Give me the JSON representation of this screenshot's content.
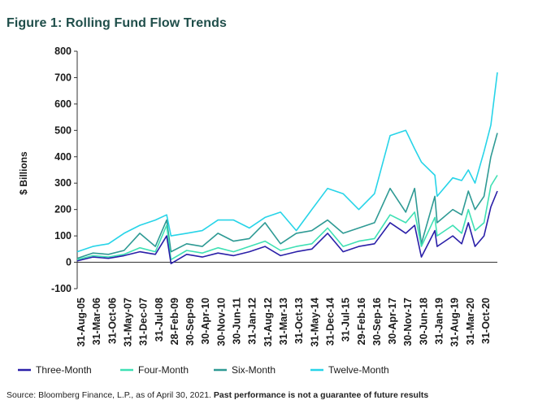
{
  "header": {
    "title": "Figure 1: Rolling Fund Flow Trends"
  },
  "footnote": {
    "source": "Source: Bloomberg Finance, L.P., as of April 30, 2021. ",
    "disclaimer": "Past performance is not a guarantee of future results"
  },
  "colors": {
    "three_month": "#2a1fa8",
    "four_month": "#3ee0b4",
    "six_month": "#2e9a94",
    "twelve_month": "#27d4e8",
    "axis": "#333333",
    "title": "#1f4e4a"
  },
  "chart_data": {
    "type": "line",
    "title": "Figure 1: Rolling Fund Flow Trends",
    "ylabel": "$ Billions",
    "xlabel": "",
    "ylim": [
      -100,
      800
    ],
    "yticks": [
      -100,
      0,
      100,
      200,
      300,
      400,
      500,
      600,
      700,
      800
    ],
    "xlim": [
      "2005-08-31",
      "2021-04-30"
    ],
    "xtick_labels": [
      "31-Aug-05",
      "31-Mar-06",
      "31-Oct-06",
      "31-May-07",
      "31-Dec-07",
      "31-Jul-08",
      "28-Feb-09",
      "30-Sep-09",
      "30-Apr-10",
      "30-Nov-10",
      "30-Jun-11",
      "31-Jan-12",
      "31-Aug-12",
      "31-Mar-13",
      "31-Oct-13",
      "31-May-14",
      "31-Dec-14",
      "31-Jul-15",
      "29-Feb-16",
      "30-Sep-16",
      "30-Apr-17",
      "30-Nov-17",
      "30-Jun-18",
      "31-Jan-19",
      "31-Aug-19",
      "31-Mar-20",
      "31-Oct-20"
    ],
    "grid": false,
    "legend_position": "bottom",
    "series": [
      {
        "name": "Three-Month",
        "x": [
          "2005-08-31",
          "2006-03-31",
          "2006-10-31",
          "2007-05-31",
          "2007-12-31",
          "2008-07-31",
          "2008-12-31",
          "2009-02-28",
          "2009-09-30",
          "2010-04-30",
          "2010-11-30",
          "2011-06-30",
          "2012-01-31",
          "2012-08-31",
          "2013-03-31",
          "2013-10-31",
          "2014-05-31",
          "2014-12-31",
          "2015-07-31",
          "2016-02-29",
          "2016-09-30",
          "2017-04-30",
          "2017-11-30",
          "2018-03-31",
          "2018-06-30",
          "2018-12-31",
          "2019-01-31",
          "2019-08-31",
          "2019-12-31",
          "2020-03-31",
          "2020-06-30",
          "2020-10-31",
          "2021-01-31",
          "2021-04-30"
        ],
        "y": [
          5,
          20,
          15,
          25,
          40,
          30,
          100,
          -5,
          30,
          20,
          35,
          25,
          40,
          60,
          25,
          40,
          50,
          110,
          40,
          60,
          70,
          150,
          110,
          140,
          20,
          120,
          60,
          100,
          70,
          150,
          60,
          100,
          210,
          270
        ]
      },
      {
        "name": "Four-Month",
        "x": [
          "2005-08-31",
          "2006-03-31",
          "2006-10-31",
          "2007-05-31",
          "2007-12-31",
          "2008-07-31",
          "2008-12-31",
          "2009-02-28",
          "2009-09-30",
          "2010-04-30",
          "2010-11-30",
          "2011-06-30",
          "2012-01-31",
          "2012-08-31",
          "2013-03-31",
          "2013-10-31",
          "2014-05-31",
          "2014-12-31",
          "2015-07-31",
          "2016-02-29",
          "2016-09-30",
          "2017-04-30",
          "2017-11-30",
          "2018-03-31",
          "2018-06-30",
          "2018-12-31",
          "2019-01-31",
          "2019-08-31",
          "2019-12-31",
          "2020-03-31",
          "2020-06-30",
          "2020-10-31",
          "2021-01-31",
          "2021-04-30"
        ],
        "y": [
          10,
          25,
          20,
          30,
          55,
          40,
          140,
          10,
          45,
          35,
          55,
          40,
          60,
          80,
          45,
          60,
          70,
          130,
          60,
          80,
          90,
          180,
          150,
          190,
          60,
          170,
          100,
          140,
          110,
          200,
          120,
          150,
          290,
          330
        ]
      },
      {
        "name": "Six-Month",
        "x": [
          "2005-08-31",
          "2006-03-31",
          "2006-10-31",
          "2007-05-31",
          "2007-12-31",
          "2008-07-31",
          "2008-12-31",
          "2009-02-28",
          "2009-09-30",
          "2010-04-30",
          "2010-11-30",
          "2011-06-30",
          "2012-01-31",
          "2012-08-31",
          "2013-03-31",
          "2013-10-31",
          "2014-05-31",
          "2014-12-31",
          "2015-07-31",
          "2016-02-29",
          "2016-09-30",
          "2017-04-30",
          "2017-11-30",
          "2018-03-31",
          "2018-06-30",
          "2018-12-31",
          "2019-01-31",
          "2019-08-31",
          "2019-12-31",
          "2020-03-31",
          "2020-06-30",
          "2020-10-31",
          "2021-01-31",
          "2021-04-30"
        ],
        "y": [
          15,
          35,
          30,
          45,
          110,
          60,
          160,
          40,
          70,
          60,
          110,
          80,
          90,
          150,
          70,
          110,
          120,
          160,
          110,
          130,
          150,
          280,
          190,
          280,
          70,
          250,
          150,
          200,
          180,
          270,
          200,
          250,
          400,
          490
        ]
      },
      {
        "name": "Twelve-Month",
        "x": [
          "2005-08-31",
          "2006-03-31",
          "2006-10-31",
          "2007-05-31",
          "2007-12-31",
          "2008-07-31",
          "2008-12-31",
          "2009-02-28",
          "2009-09-30",
          "2010-04-30",
          "2010-11-30",
          "2011-06-30",
          "2012-01-31",
          "2012-08-31",
          "2013-03-31",
          "2013-10-31",
          "2014-05-31",
          "2014-12-31",
          "2015-07-31",
          "2016-02-29",
          "2016-09-30",
          "2017-04-30",
          "2017-11-30",
          "2018-03-31",
          "2018-06-30",
          "2018-12-31",
          "2019-01-31",
          "2019-08-31",
          "2019-12-31",
          "2020-03-31",
          "2020-06-30",
          "2020-10-31",
          "2021-01-31",
          "2021-04-30"
        ],
        "y": [
          40,
          60,
          70,
          110,
          140,
          160,
          180,
          100,
          110,
          120,
          160,
          160,
          130,
          170,
          190,
          120,
          200,
          280,
          260,
          200,
          260,
          480,
          500,
          430,
          380,
          330,
          250,
          320,
          310,
          350,
          300,
          420,
          520,
          720
        ]
      }
    ]
  }
}
